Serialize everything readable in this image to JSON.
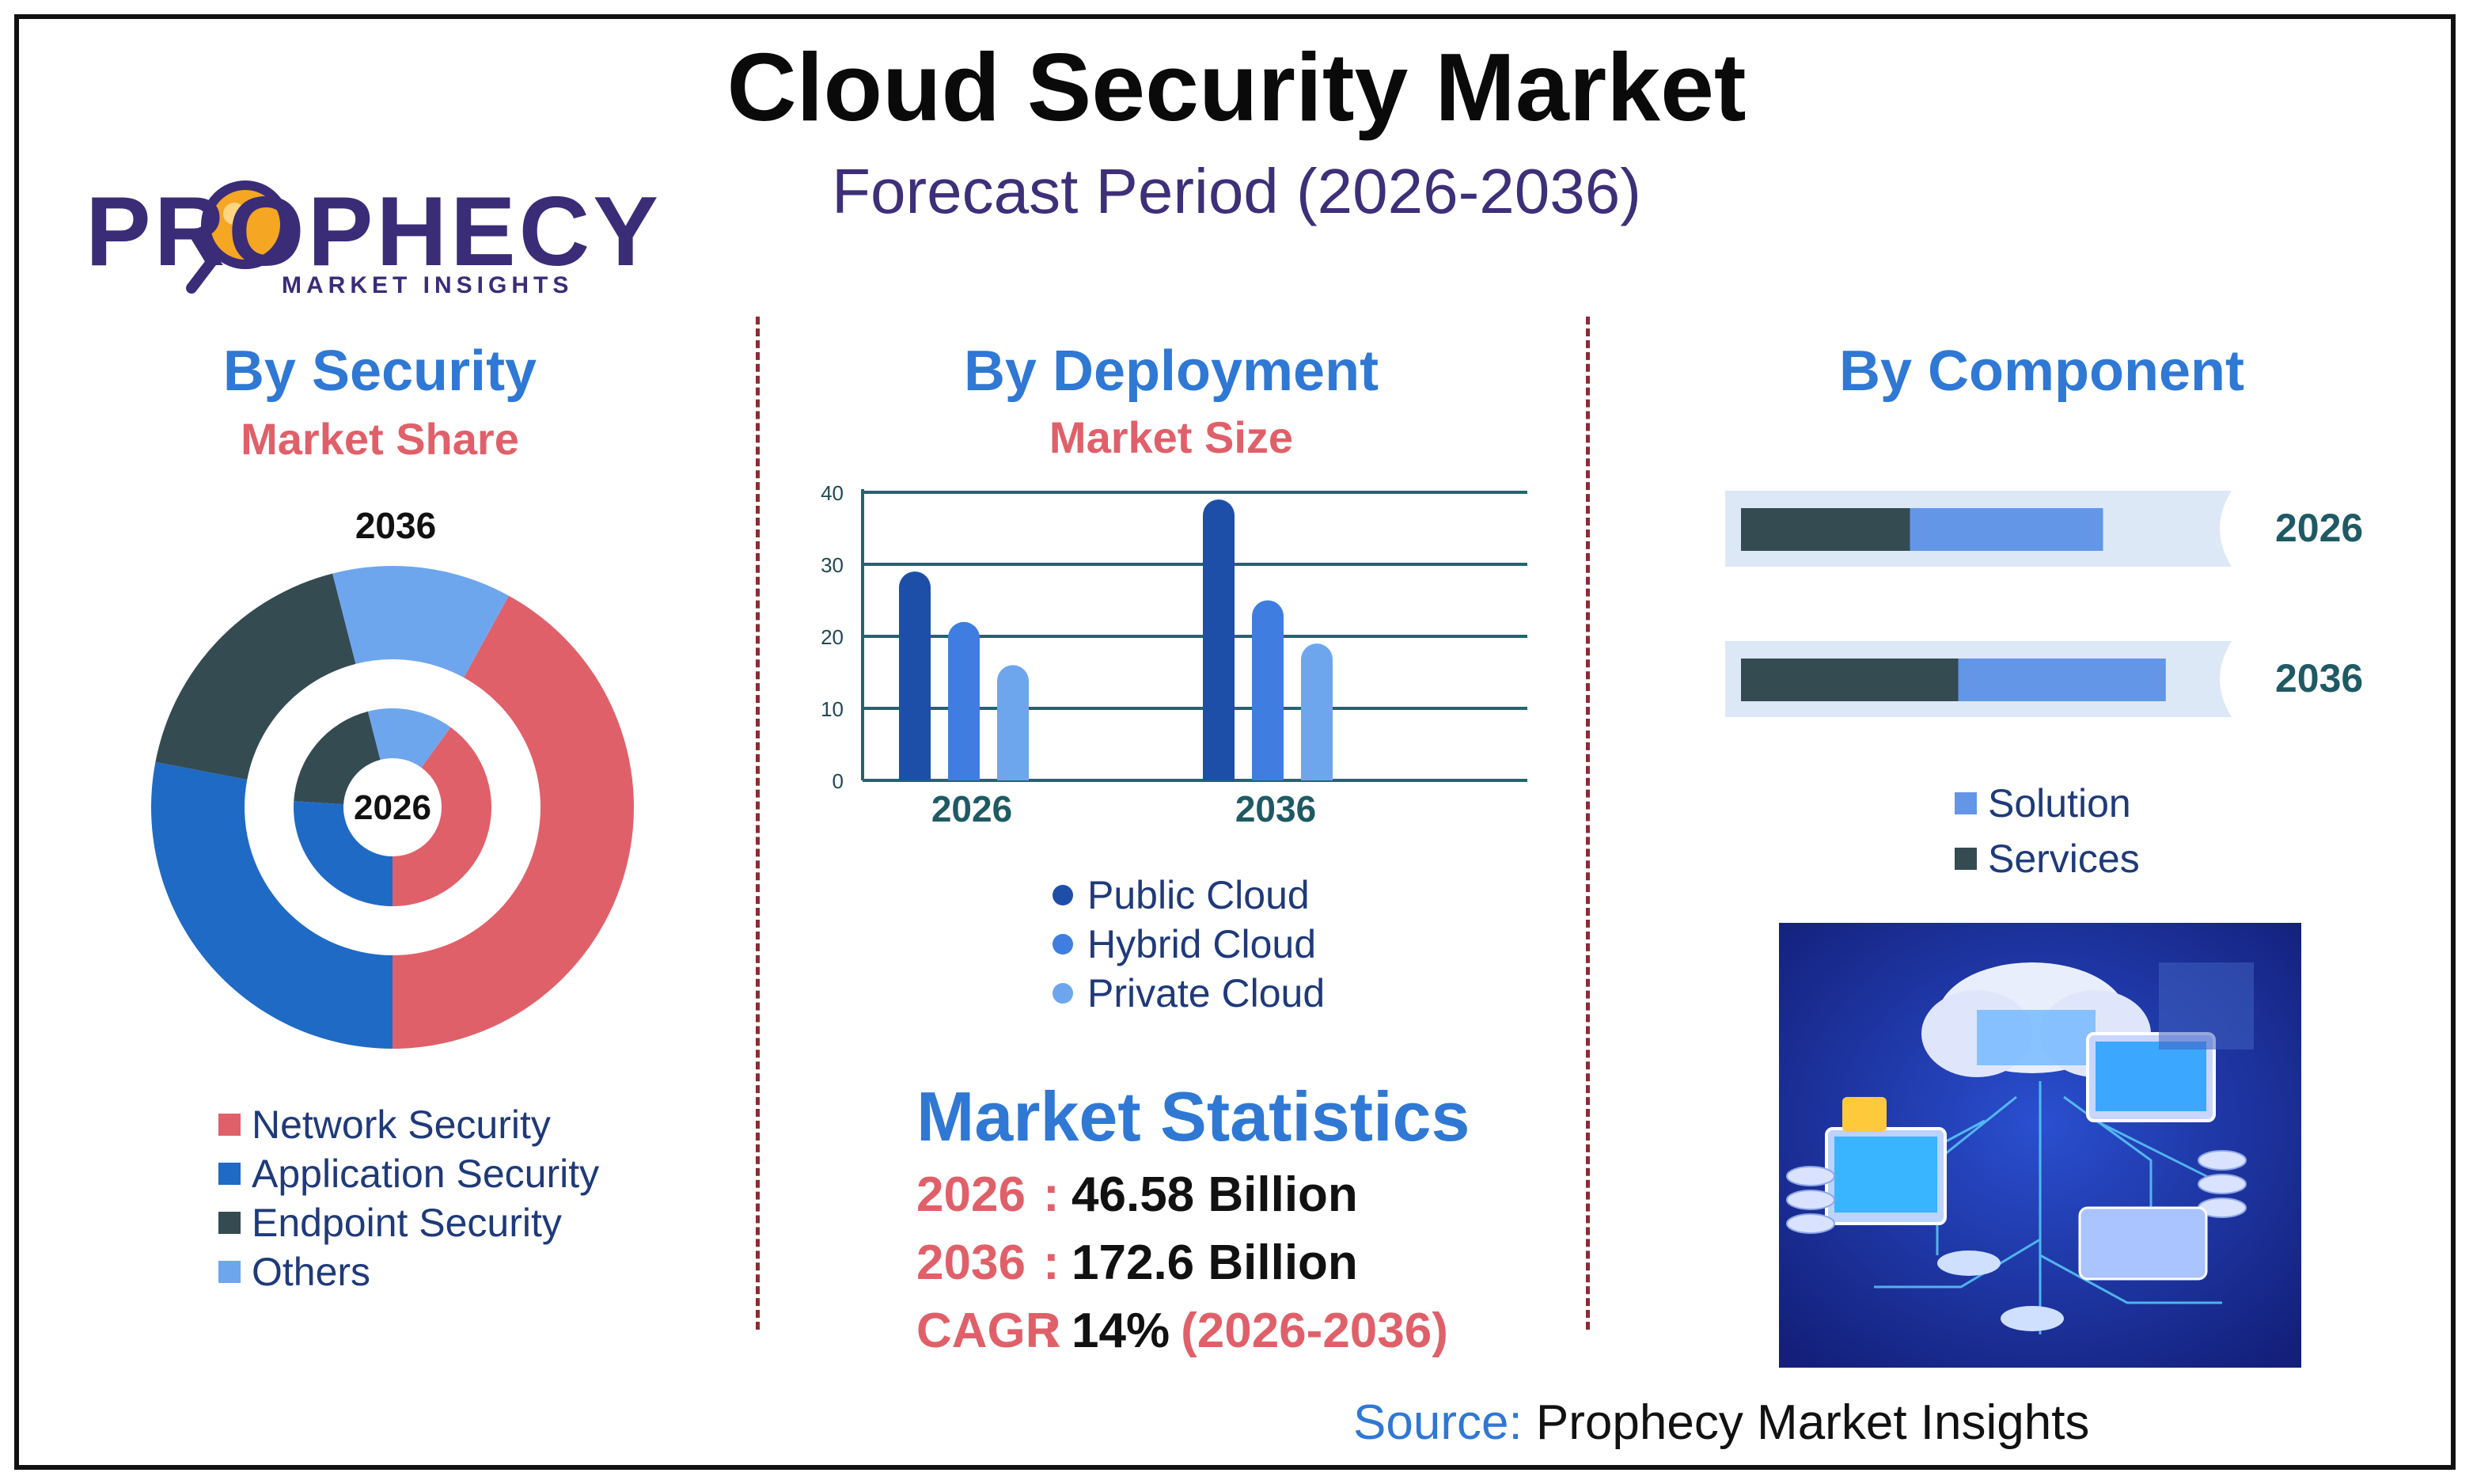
{
  "title": "Cloud Security Market",
  "subtitle": "Forecast Period (2026-2036)",
  "logo": {
    "name": "PROPHECY",
    "tagline": "MARKET INSIGHTS"
  },
  "sections": {
    "security": {
      "title": "By Security",
      "subtitle": "Market Share"
    },
    "deployment": {
      "title": "By Deployment",
      "subtitle": "Market Size"
    },
    "component": {
      "title": "By Component"
    }
  },
  "chart_data": [
    {
      "type": "pie",
      "variant": "nested-donut",
      "categories": [
        "Network Security",
        "Application Security",
        "Endpoint Security",
        "Others"
      ],
      "colors": [
        "#e0606a",
        "#1f6ac4",
        "#354b52",
        "#6ea6ee"
      ],
      "series": [
        {
          "name": "2036",
          "values": [
            42,
            28,
            18,
            12
          ]
        },
        {
          "name": "2026",
          "values": [
            40,
            26,
            20,
            14
          ]
        }
      ]
    },
    {
      "type": "bar",
      "categories": [
        "2026",
        "2036"
      ],
      "series": [
        {
          "name": "Public Cloud",
          "values": [
            29,
            39
          ],
          "color": "#1e4fa8"
        },
        {
          "name": "Hybrid Cloud",
          "values": [
            22,
            25
          ],
          "color": "#3f7ee0"
        },
        {
          "name": "Private Cloud",
          "values": [
            16,
            19
          ],
          "color": "#6ea6ee"
        }
      ],
      "y_ticks": [
        "0",
        "10",
        "20",
        "30",
        "40"
      ],
      "ylim": [
        0,
        40
      ],
      "grid": true,
      "legend": "bottom"
    },
    {
      "type": "bar",
      "orientation": "horizontal-stacked",
      "categories": [
        "2026",
        "2036"
      ],
      "series": [
        {
          "name": "Services",
          "values": [
            35,
            45
          ],
          "color": "#354b52"
        },
        {
          "name": "Solution",
          "values": [
            40,
            43
          ],
          "color": "#6396e6"
        }
      ],
      "legend_order": [
        "Solution",
        "Services"
      ],
      "track_color": "#dde8f6",
      "legend": "bottom"
    }
  ],
  "stats": {
    "title": "Market Statistics",
    "rows": [
      {
        "key": "2026",
        "value": "46.58 Billion",
        "extra": ""
      },
      {
        "key": "2036",
        "value": "172.6 Billion",
        "extra": ""
      },
      {
        "key": "CAGR",
        "value": "14%",
        "extra": "(2026-2036)"
      }
    ]
  },
  "source": {
    "label": "Source:",
    "text": "Prophecy Market Insights"
  },
  "illustration": {
    "icon": "cloud-network-isometric-illustration",
    "bg": "#1a2b9a"
  }
}
